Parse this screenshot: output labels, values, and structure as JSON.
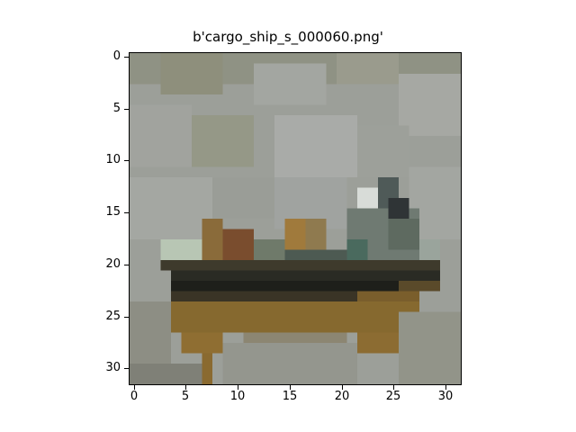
{
  "figure": {
    "title": "b'cargo_ship_s_000060.png'"
  },
  "image": {
    "description_colors": {
      "sky": "#9ea19c",
      "sky_light": "#a9aba7",
      "water": "#8c8d82",
      "water_dark": "#7b7d70",
      "hull_dark": "#1f211c",
      "hull_brown": "#6e5a2c",
      "reflection": "#8a6a2e",
      "cabin": "#7f8a82",
      "cargo_green": "#5a6d57",
      "cargo_orange": "#a07a3c",
      "white_spot": "#d8dcd8"
    }
  },
  "axes": {
    "y_ticks": [
      "0",
      "5",
      "10",
      "15",
      "20",
      "25",
      "30"
    ],
    "x_ticks": [
      "0",
      "5",
      "10",
      "15",
      "20",
      "25",
      "30"
    ]
  }
}
